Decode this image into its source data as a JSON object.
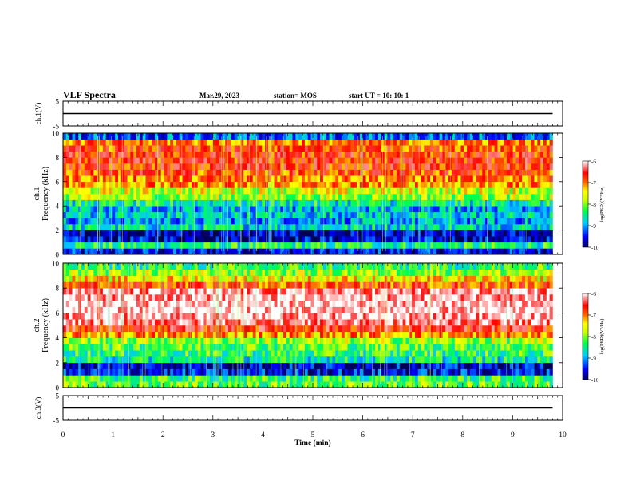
{
  "header": {
    "title": "VLF Spectra",
    "date": "Mar.29, 2023",
    "station": "station= MOS",
    "start": "start UT =  10: 10: 1"
  },
  "chart_data": [
    {
      "type": "line",
      "panel": "ch1-waveform",
      "ylabel": "ch.1(V)",
      "ylim": [
        -5,
        5
      ],
      "yticks": [
        "5",
        "-5"
      ],
      "xlim": [
        0,
        10
      ],
      "series": [
        {
          "x": [
            0,
            9.8
          ],
          "values": [
            0,
            0
          ]
        }
      ]
    },
    {
      "type": "heatmap",
      "panel": "ch1-spectrogram",
      "ylabel": "ch.1\nFrequency (kHz)",
      "ylim": [
        0,
        10
      ],
      "yticks": [
        "0",
        "2",
        "4",
        "6",
        "8",
        "10"
      ],
      "xlim": [
        0,
        10
      ],
      "data_x_max": 9.8,
      "freq_bands_khz": [
        0,
        0.5,
        1,
        1.5,
        2,
        2.5,
        3,
        3.5,
        4,
        4.5,
        5,
        5.5,
        6,
        6.5,
        7,
        7.5,
        8,
        8.5,
        9,
        9.5,
        10
      ],
      "log_psd": [
        -9.5,
        -8.5,
        -9.6,
        -9.7,
        -8.7,
        -9.0,
        -8.8,
        -8.9,
        -8.6,
        -8.0,
        -7.8,
        -7.3,
        -7.2,
        -7.0,
        -6.9,
        -6.9,
        -6.9,
        -7.0,
        -7.2,
        -9.2
      ],
      "colorbar": {
        "label": "log(PSD)(V²/Hz)",
        "range": [
          -10,
          -6
        ],
        "ticks": [
          "-6",
          "-7",
          "-8",
          "-9",
          "-10"
        ]
      }
    },
    {
      "type": "heatmap",
      "panel": "ch2-spectrogram",
      "ylabel": "ch.2\nFrequency (kHz)",
      "ylim": [
        0,
        10
      ],
      "yticks": [
        "0",
        "2",
        "4",
        "6",
        "8",
        "10"
      ],
      "xlim": [
        0,
        10
      ],
      "data_x_max": 9.8,
      "freq_bands_khz": [
        0,
        0.5,
        1,
        1.5,
        2,
        2.5,
        3,
        3.5,
        4,
        4.5,
        5,
        5.5,
        6,
        6.5,
        7,
        7.5,
        8,
        8.5,
        9,
        9.5,
        10
      ],
      "log_psd": [
        -8.2,
        -8.4,
        -9.5,
        -9.6,
        -8.6,
        -8.4,
        -8.2,
        -8.0,
        -7.3,
        -6.8,
        -6.4,
        -6.2,
        -6.1,
        -6.1,
        -6.2,
        -6.4,
        -7.0,
        -7.6,
        -8.0,
        -8.4
      ],
      "colorbar": {
        "label": "log(PSD)(V²/Hz)",
        "range": [
          -10,
          -6
        ],
        "ticks": [
          "-6",
          "-7",
          "-8",
          "-9",
          "-10"
        ]
      }
    },
    {
      "type": "line",
      "panel": "ch3-waveform",
      "ylabel": "ch.3(V)",
      "ylim": [
        -5,
        5
      ],
      "yticks": [
        "5",
        "-5"
      ],
      "xlim": [
        0,
        10
      ],
      "xlabel": "Time (min)",
      "xticks": [
        "0",
        "1",
        "2",
        "3",
        "4",
        "5",
        "6",
        "7",
        "8",
        "9",
        "10"
      ],
      "series": [
        {
          "x": [
            0,
            9.8
          ],
          "values": [
            0,
            0
          ]
        }
      ]
    }
  ],
  "colors": {
    "scale": [
      "#00003a",
      "#0000ff",
      "#00ccff",
      "#00ff66",
      "#aaff00",
      "#ffff00",
      "#ff8800",
      "#ff0000",
      "#ffffff"
    ]
  }
}
